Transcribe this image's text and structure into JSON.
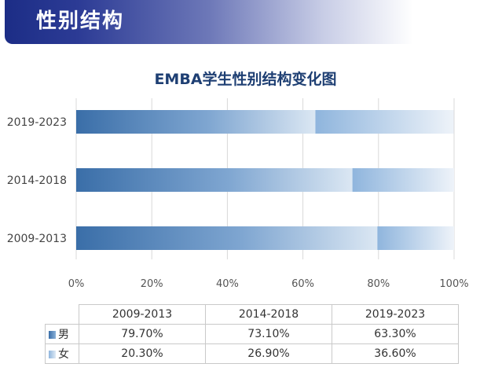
{
  "banner": {
    "title": "性别结构"
  },
  "chart_data": {
    "type": "bar",
    "orientation": "horizontal",
    "stacked": true,
    "title": "EMBA学生性别结构变化图",
    "categories": [
      "2019-2023",
      "2014-2018",
      "2009-2013"
    ],
    "series": [
      {
        "name": "男",
        "values": [
          63.3,
          73.1,
          79.7
        ]
      },
      {
        "name": "女",
        "values": [
          36.6,
          26.9,
          20.3
        ]
      }
    ],
    "xlim": [
      0,
      100
    ],
    "xticks": [
      "0%",
      "20%",
      "40%",
      "60%",
      "80%",
      "100%"
    ],
    "grid": true,
    "colors": {
      "male": "#3a6ea8",
      "female": "#8fb5dd"
    }
  },
  "table": {
    "columns": [
      "2009-2013",
      "2014-2018",
      "2019-2023"
    ],
    "rows": [
      {
        "label": "男",
        "values": [
          "79.70%",
          "73.10%",
          "63.30%"
        ]
      },
      {
        "label": "女",
        "values": [
          "20.30%",
          "26.90%",
          "36.60%"
        ]
      }
    ]
  }
}
